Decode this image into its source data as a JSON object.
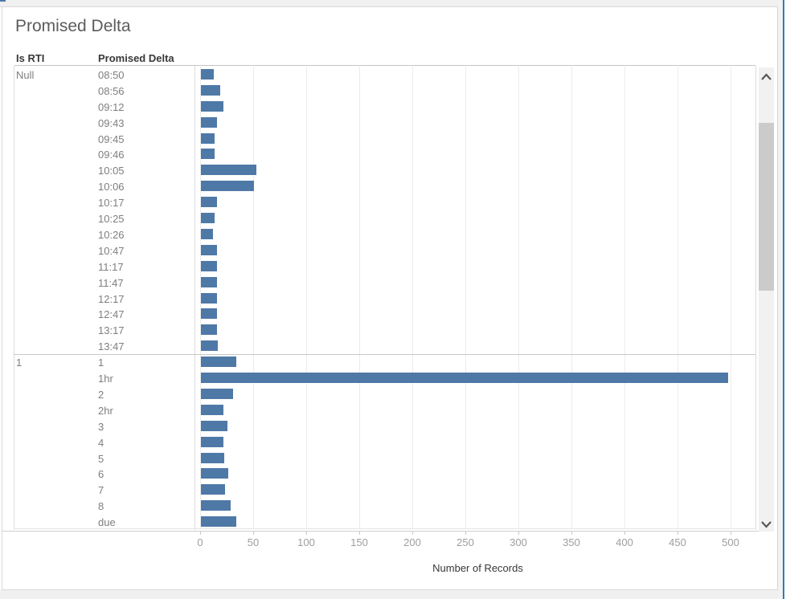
{
  "window": {
    "background_color": "#f0f0f0",
    "accent_border_color": "#2a7cc0",
    "panel_border_color": "#d9d9d9"
  },
  "header": {
    "title": "Promised Delta"
  },
  "table": {
    "columns": [
      {
        "label": "Is RTI"
      },
      {
        "label": "Promised Delta"
      }
    ]
  },
  "chart_data": {
    "type": "bar",
    "orientation": "horizontal",
    "title": "Promised Delta",
    "xlabel": "Number of Records",
    "group_column": "Is RTI",
    "row_column": "Promised Delta",
    "bar_color": "#4e79a7",
    "xlim": [
      0,
      523
    ],
    "grid": true,
    "x_ticks": [
      0,
      50,
      100,
      150,
      200,
      250,
      300,
      350,
      400,
      450,
      500
    ],
    "groups": [
      {
        "is_rti": "Null",
        "rows": [
          {
            "label": "08:50",
            "value": 12
          },
          {
            "label": "08:56",
            "value": 18
          },
          {
            "label": "09:12",
            "value": 21
          },
          {
            "label": "09:43",
            "value": 15
          },
          {
            "label": "09:45",
            "value": 13
          },
          {
            "label": "09:46",
            "value": 13
          },
          {
            "label": "10:05",
            "value": 52
          },
          {
            "label": "10:06",
            "value": 50
          },
          {
            "label": "10:17",
            "value": 15
          },
          {
            "label": "10:25",
            "value": 13
          },
          {
            "label": "10:26",
            "value": 11
          },
          {
            "label": "10:47",
            "value": 15
          },
          {
            "label": "11:17",
            "value": 15
          },
          {
            "label": "11:47",
            "value": 15
          },
          {
            "label": "12:17",
            "value": 15
          },
          {
            "label": "12:47",
            "value": 15
          },
          {
            "label": "13:17",
            "value": 15
          },
          {
            "label": "13:47",
            "value": 16
          }
        ]
      },
      {
        "is_rti": "1",
        "rows": [
          {
            "label": "1",
            "value": 33
          },
          {
            "label": "1hr",
            "value": 497
          },
          {
            "label": "2",
            "value": 30
          },
          {
            "label": "2hr",
            "value": 21
          },
          {
            "label": "3",
            "value": 25
          },
          {
            "label": "4",
            "value": 21
          },
          {
            "label": "5",
            "value": 22
          },
          {
            "label": "6",
            "value": 26
          },
          {
            "label": "7",
            "value": 23
          },
          {
            "label": "8",
            "value": 28
          },
          {
            "label": "due",
            "value": 33
          }
        ]
      }
    ],
    "partial_next_row_value": 5
  },
  "scrollbar": {
    "up_icon": "chevron-up-icon",
    "down_icon": "chevron-down-icon"
  }
}
